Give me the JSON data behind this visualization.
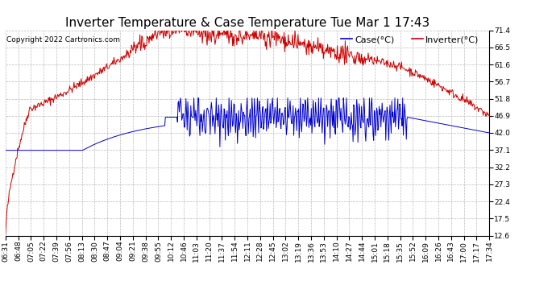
{
  "title": "Inverter Temperature & Case Temperature Tue Mar 1 17:43",
  "copyright": "Copyright 2022 Cartronics.com",
  "legend_case": "Case(°C)",
  "legend_inverter": "Inverter(°C)",
  "ylabel_ticks": [
    12.6,
    17.5,
    22.4,
    27.3,
    32.2,
    37.1,
    42.0,
    46.9,
    51.8,
    56.7,
    61.6,
    66.5,
    71.4
  ],
  "xtick_labels": [
    "06:31",
    "06:48",
    "07:05",
    "07:22",
    "07:39",
    "07:56",
    "08:13",
    "08:30",
    "08:47",
    "09:04",
    "09:21",
    "09:38",
    "09:55",
    "10:12",
    "10:46",
    "11:03",
    "11:20",
    "11:37",
    "11:54",
    "12:11",
    "12:28",
    "12:45",
    "13:02",
    "13:19",
    "13:36",
    "13:53",
    "14:10",
    "14:27",
    "14:44",
    "15:01",
    "15:18",
    "15:35",
    "15:52",
    "16:09",
    "16:26",
    "16:43",
    "17:00",
    "17:17",
    "17:34"
  ],
  "bg_color": "#ffffff",
  "grid_color": "#bbbbbb",
  "case_color": "#0000cc",
  "inverter_color": "#cc0000",
  "title_fontsize": 11,
  "tick_fontsize": 6.5,
  "legend_fontsize": 8,
  "copyright_fontsize": 6.5
}
